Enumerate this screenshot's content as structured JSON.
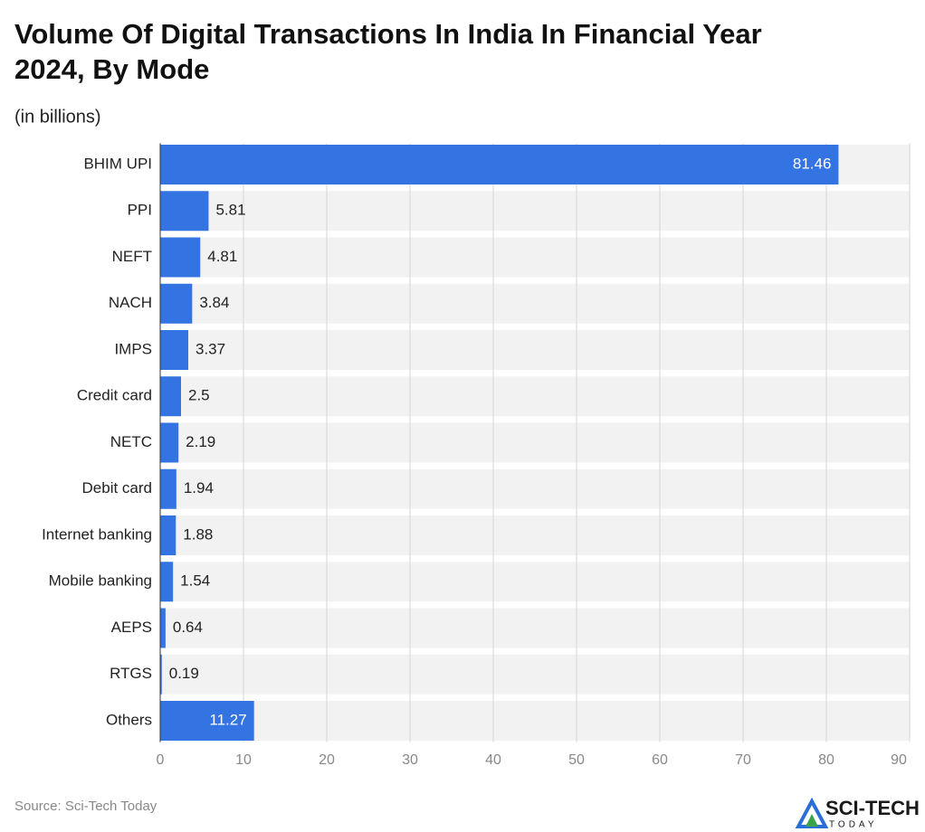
{
  "chart_data": {
    "type": "bar",
    "orientation": "horizontal",
    "title": "Volume Of Digital Transactions In India In Financial Year 2024, By Mode",
    "subtitle": "(in billions)",
    "categories": [
      "BHIM UPI",
      "PPI",
      "NEFT",
      "NACH",
      "IMPS",
      "Credit card",
      "NETC",
      "Debit card",
      "Internet banking",
      "Mobile banking",
      "AEPS",
      "RTGS",
      "Others"
    ],
    "values": [
      81.46,
      5.81,
      4.81,
      3.84,
      3.37,
      2.5,
      2.19,
      1.94,
      1.88,
      1.54,
      0.64,
      0.19,
      11.27
    ],
    "color": "#3474e2",
    "xlim": [
      0,
      90
    ],
    "xticks": [
      0,
      10,
      20,
      30,
      40,
      50,
      60,
      70,
      80,
      90
    ],
    "grid": true,
    "source": "Source: Sci-Tech Today",
    "logo": {
      "name": "SCI-TECH",
      "tagline": "TODAY"
    }
  }
}
